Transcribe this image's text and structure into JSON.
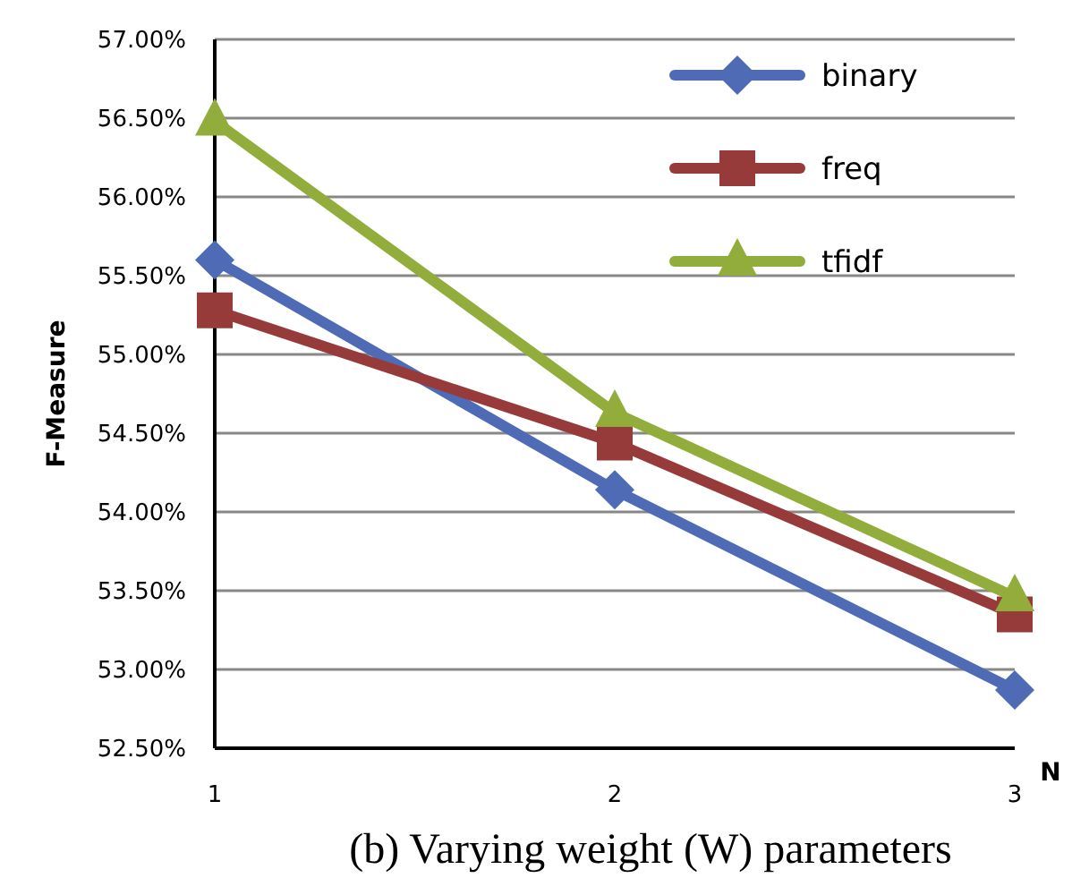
{
  "chart_data": {
    "type": "line",
    "title": "(b) Varying weight (W) parameters",
    "xlabel": "N",
    "ylabel": "F-Measure",
    "x": [
      1,
      2,
      3
    ],
    "series": [
      {
        "name": "binary",
        "color": "#4f6bb5",
        "marker": "diamond",
        "values": [
          55.6,
          54.14,
          52.87
        ]
      },
      {
        "name": "freq",
        "color": "#973a3a",
        "marker": "square",
        "values": [
          55.28,
          54.44,
          53.35
        ]
      },
      {
        "name": "tfidf",
        "color": "#93ad3c",
        "marker": "triangle",
        "values": [
          56.48,
          54.63,
          53.46
        ]
      }
    ],
    "xlim": [
      1,
      3
    ],
    "xticks": [
      1,
      2,
      3
    ],
    "ylim": [
      52.5,
      57
    ],
    "yticks": [
      {
        "value": 52.5,
        "label": "52.50%"
      },
      {
        "value": 53,
        "label": "53.00%"
      },
      {
        "value": 53.5,
        "label": "53.50%"
      },
      {
        "value": 54,
        "label": "54.00%"
      },
      {
        "value": 54.5,
        "label": "54.50%"
      },
      {
        "value": 55,
        "label": "55.00%"
      },
      {
        "value": 55.5,
        "label": "55.50%"
      },
      {
        "value": 56,
        "label": "56.00%"
      },
      {
        "value": 56.5,
        "label": "56.50%"
      },
      {
        "value": 57,
        "label": "57.00%"
      }
    ],
    "grid": "y",
    "legend": "top right",
    "line_style": "solid"
  }
}
